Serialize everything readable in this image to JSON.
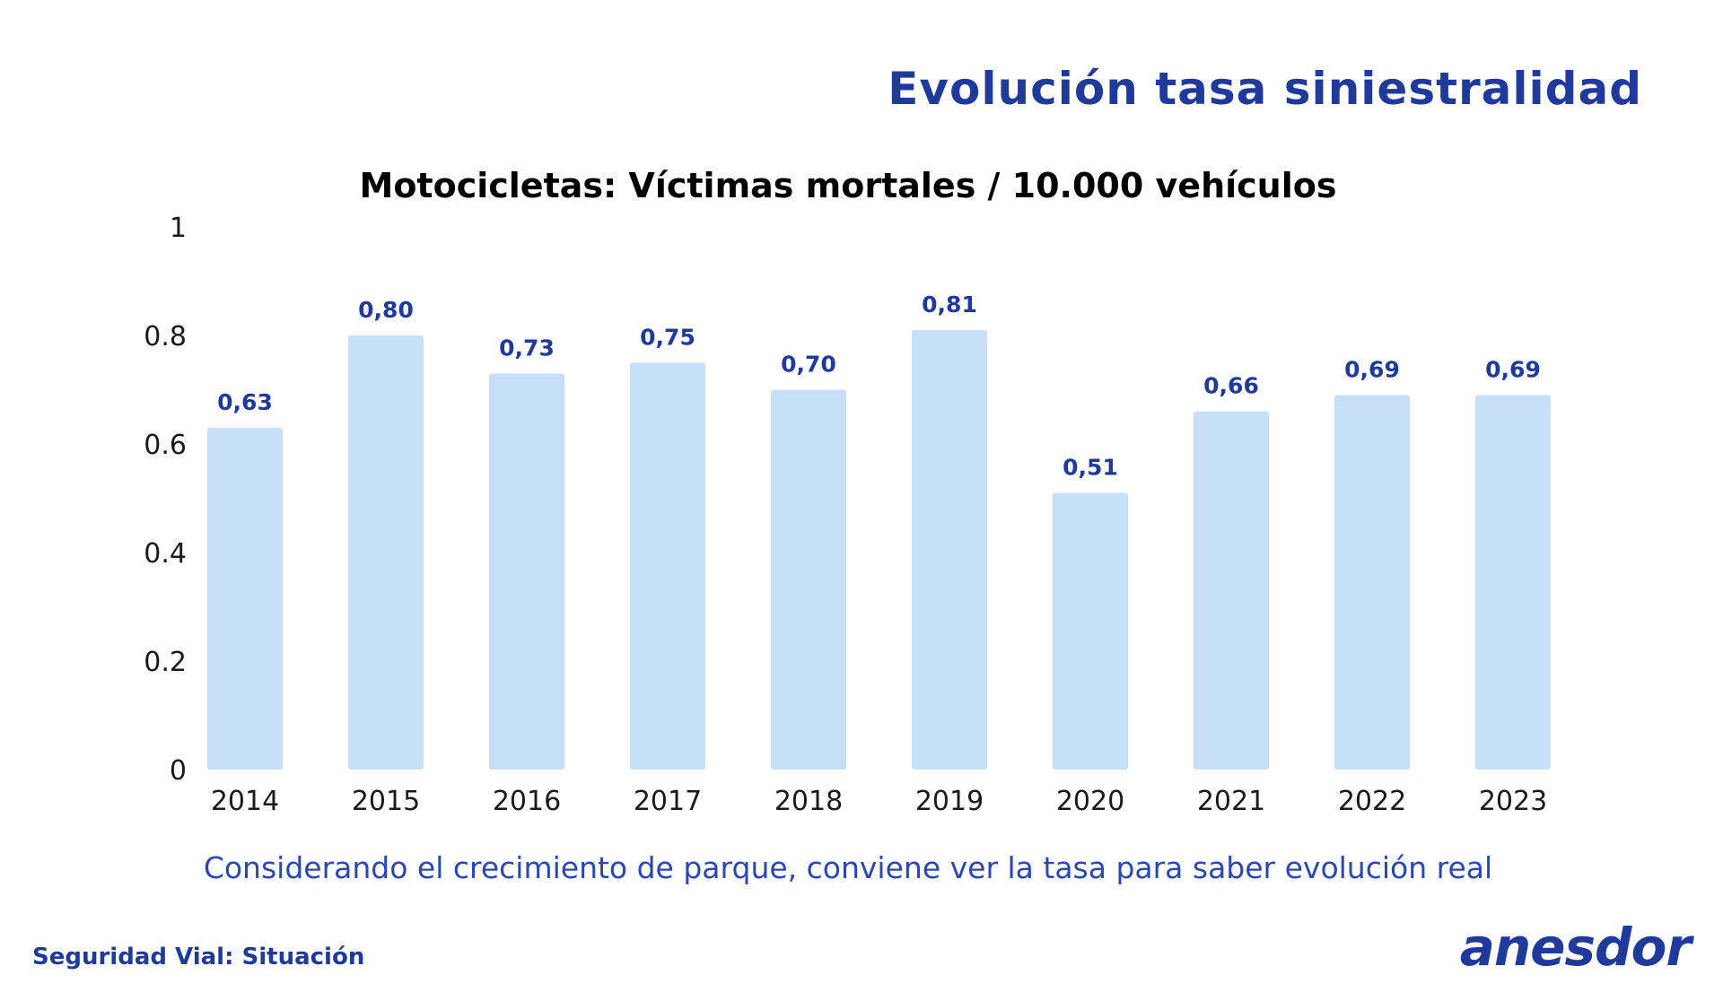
{
  "header": {
    "title": "Evolución tasa siniestralidad"
  },
  "chart_data": {
    "type": "bar",
    "title": "Motocicletas: Víctimas mortales / 10.000 vehículos",
    "categories": [
      "2014",
      "2015",
      "2016",
      "2017",
      "2018",
      "2019",
      "2020",
      "2021",
      "2022",
      "2023"
    ],
    "values": [
      0.63,
      0.8,
      0.73,
      0.75,
      0.7,
      0.81,
      0.51,
      0.66,
      0.69,
      0.69
    ],
    "value_labels": [
      "0,63",
      "0,80",
      "0,73",
      "0,75",
      "0,70",
      "0,81",
      "0,51",
      "0,66",
      "0,69",
      "0,69"
    ],
    "ylim": [
      0,
      1
    ],
    "yticks": [
      0,
      0.2,
      0.4,
      0.6,
      0.8,
      1
    ],
    "ytick_labels": [
      "0",
      "0.2",
      "0.4",
      "0.6",
      "0.8",
      "1"
    ],
    "xlabel": "",
    "ylabel": "",
    "grid": false,
    "bar_color": "#c7dff9",
    "label_color": "#1f3a9a"
  },
  "note": "Considerando el crecimiento de parque, conviene ver la tasa para saber evolución real",
  "footer": {
    "label": "Seguridad Vial: Situación",
    "logo_text": "anesdor"
  }
}
